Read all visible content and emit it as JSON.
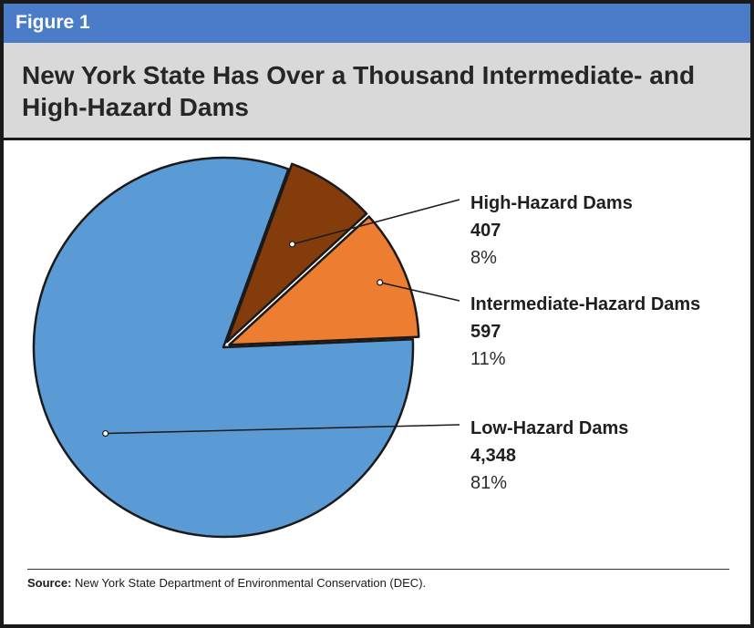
{
  "figure_label": "Figure 1",
  "title": "New York State Has Over a Thousand Intermediate- and High-Hazard Dams",
  "source_label": "Source:",
  "source_text": " New York State Department of Environmental Conservation (DEC).",
  "colors": {
    "header_band": "#4a7cc7",
    "title_band": "#d9d9d9",
    "low_hazard": "#5b9bd5",
    "intermediate_hazard": "#ed7d31",
    "high_hazard": "#843c0c"
  },
  "chart_data": {
    "type": "pie",
    "title": "New York State Has Over a Thousand Intermediate- and High-Hazard Dams",
    "slices": [
      {
        "name": "High-Hazard Dams",
        "value": 407,
        "value_label": "407",
        "percent_label": "8%",
        "color": "#843c0c",
        "exploded": true
      },
      {
        "name": "Intermediate-Hazard Dams",
        "value": 597,
        "value_label": "597",
        "percent_label": "11%",
        "color": "#ed7d31",
        "exploded": true
      },
      {
        "name": "Low-Hazard Dams",
        "value": 4348,
        "value_label": "4,348",
        "percent_label": "81%",
        "color": "#5b9bd5",
        "exploded": false
      }
    ]
  }
}
